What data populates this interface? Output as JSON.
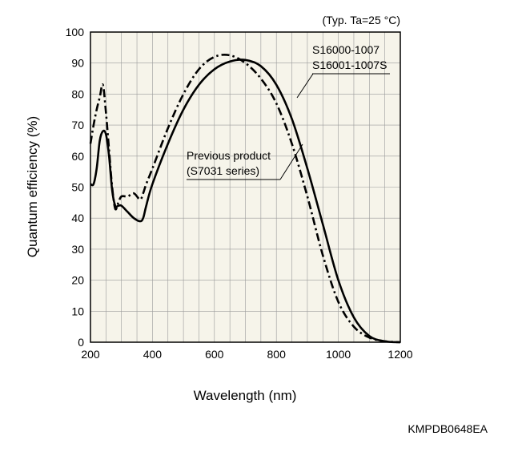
{
  "chart_data": {
    "type": "line",
    "title": "",
    "condition_note": "(Typ. Ta=25 °C)",
    "xlabel": "Wavelength (nm)",
    "ylabel": "Quantum efficiency (%)",
    "xlim": [
      200,
      1200
    ],
    "ylim": [
      0,
      100
    ],
    "x_ticks": [
      "200",
      "400",
      "600",
      "800",
      "1000",
      "1200"
    ],
    "y_ticks": [
      "0",
      "10",
      "20",
      "30",
      "40",
      "50",
      "60",
      "70",
      "80",
      "90",
      "100"
    ],
    "grid": true,
    "background": "#f6f4ea",
    "series": [
      {
        "name": "S16000-1007 / S16001-1007S",
        "label_lines": [
          "S16000-1007",
          "S16001-1007S"
        ],
        "style": "solid",
        "color": "#000000",
        "x": [
          200,
          210,
          220,
          230,
          240,
          250,
          260,
          270,
          280,
          290,
          300,
          320,
          340,
          360,
          370,
          380,
          400,
          450,
          500,
          550,
          600,
          650,
          700,
          750,
          800,
          850,
          900,
          950,
          1000,
          1050,
          1100,
          1150,
          1200
        ],
        "y": [
          51,
          51,
          56,
          65,
          68,
          67,
          60,
          49,
          44,
          44,
          44,
          42,
          40,
          39,
          40,
          44,
          51,
          64,
          75,
          83,
          88,
          90.5,
          91,
          89,
          83,
          72,
          56,
          38,
          20,
          8,
          2,
          0.3,
          0
        ]
      },
      {
        "name": "Previous product (S7031 series)",
        "label_lines": [
          "Previous product",
          "(S7031 series)"
        ],
        "style": "dashdot",
        "color": "#000000",
        "x": [
          200,
          210,
          220,
          230,
          240,
          250,
          260,
          270,
          280,
          290,
          300,
          320,
          340,
          360,
          370,
          380,
          400,
          450,
          500,
          550,
          600,
          650,
          700,
          750,
          800,
          850,
          900,
          950,
          1000,
          1050,
          1100,
          1150,
          1200
        ],
        "y": [
          64,
          70,
          75,
          79,
          83,
          74,
          62,
          50,
          43,
          45,
          47,
          47,
          48,
          46,
          48,
          51,
          56,
          69,
          80,
          88,
          92,
          92.5,
          90,
          85,
          77,
          64,
          47,
          28,
          13,
          5,
          1.5,
          0.3,
          0
        ]
      }
    ],
    "annotations": [
      "Previous product",
      "(S7031 series)",
      "S16000-1007",
      "S16001-1007S"
    ],
    "footer_code": "KMPDB0648EA"
  }
}
